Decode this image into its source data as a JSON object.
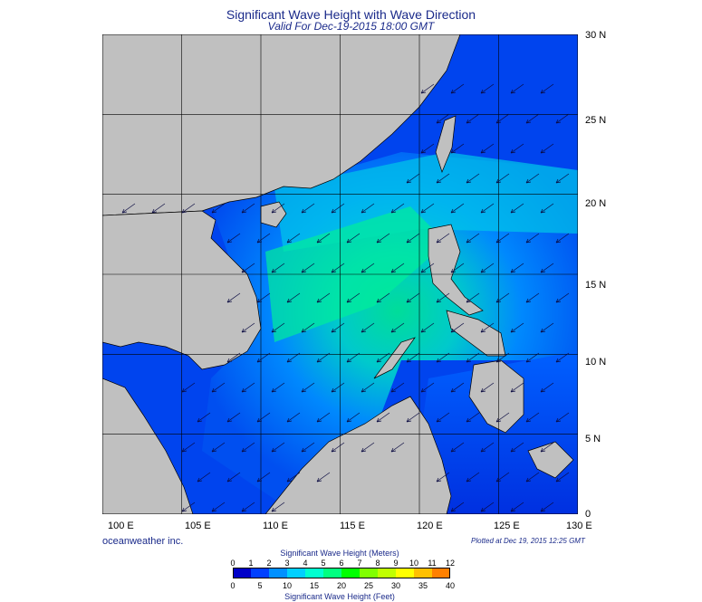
{
  "title": "Significant Wave Height with Wave Direction",
  "subtitle": "Valid For Dec-19-2015 18:00 GMT",
  "credit": "oceanweather inc.",
  "plotted": "Plotted at Dec 19, 2015 12:25 GMT",
  "map": {
    "lon_range": [
      100,
      130
    ],
    "lat_range": [
      0,
      30
    ],
    "lon_labels": [
      "100 E",
      "105 E",
      "110 E",
      "115 E",
      "120 E",
      "125 E",
      "130 E"
    ],
    "lat_labels": [
      "0",
      "5 N",
      "10 N",
      "15 N",
      "20 N",
      "25 N",
      "30 N"
    ],
    "grid": true,
    "land_color": "#c0c0c0",
    "wave_direction": "from northeast to southwest"
  },
  "colorbar": {
    "title_top": "Significant Wave Height (Meters)",
    "title_bottom": "Significant Wave Height (Feet)",
    "meters_ticks": [
      "0",
      "1",
      "2",
      "3",
      "4",
      "5",
      "6",
      "7",
      "8",
      "9",
      "10",
      "11",
      "12"
    ],
    "feet_ticks": [
      "0",
      "5",
      "10",
      "15",
      "20",
      "25",
      "30",
      "35",
      "40"
    ],
    "colors": [
      "#0000c8",
      "#0040ff",
      "#0090ff",
      "#00d0ff",
      "#00ffd0",
      "#00ff80",
      "#00ff00",
      "#80ff00",
      "#c0ff00",
      "#ffff00",
      "#ffc000",
      "#ff8000",
      "#ff2000"
    ]
  }
}
